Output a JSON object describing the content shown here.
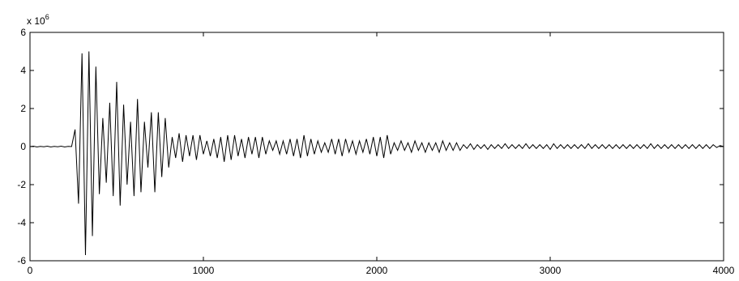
{
  "chart_data": {
    "type": "line",
    "y_scale_label": "x 10",
    "y_scale_exponent": "6",
    "color": "#000000",
    "xlim": [
      0,
      4000
    ],
    "xticks": [
      0,
      1000,
      2000,
      3000,
      4000
    ],
    "ylim": [
      -6,
      6
    ],
    "yticks": [
      -6,
      -4,
      -2,
      0,
      2,
      4,
      6
    ],
    "grid": false,
    "x": [
      0,
      20,
      40,
      60,
      80,
      100,
      120,
      140,
      160,
      180,
      200,
      220,
      240,
      260,
      280,
      300,
      320,
      340,
      360,
      380,
      400,
      420,
      440,
      460,
      480,
      500,
      520,
      540,
      560,
      580,
      600,
      620,
      640,
      660,
      680,
      700,
      720,
      740,
      760,
      780,
      800,
      820,
      840,
      860,
      880,
      900,
      920,
      940,
      960,
      980,
      1000,
      1020,
      1040,
      1060,
      1080,
      1100,
      1120,
      1140,
      1160,
      1180,
      1200,
      1220,
      1240,
      1260,
      1280,
      1300,
      1320,
      1340,
      1360,
      1380,
      1400,
      1420,
      1440,
      1460,
      1480,
      1500,
      1520,
      1540,
      1560,
      1580,
      1600,
      1620,
      1640,
      1660,
      1680,
      1700,
      1720,
      1740,
      1760,
      1780,
      1800,
      1820,
      1840,
      1860,
      1880,
      1900,
      1920,
      1940,
      1960,
      1980,
      2000,
      2020,
      2040,
      2060,
      2080,
      2100,
      2120,
      2140,
      2160,
      2180,
      2200,
      2220,
      2240,
      2260,
      2280,
      2300,
      2320,
      2340,
      2360,
      2380,
      2400,
      2420,
      2440,
      2460,
      2480,
      2500,
      2520,
      2540,
      2560,
      2580,
      2600,
      2620,
      2640,
      2660,
      2680,
      2700,
      2720,
      2740,
      2760,
      2780,
      2800,
      2820,
      2840,
      2860,
      2880,
      2900,
      2920,
      2940,
      2960,
      2980,
      3000,
      3020,
      3040,
      3060,
      3080,
      3100,
      3120,
      3140,
      3160,
      3180,
      3200,
      3220,
      3240,
      3260,
      3280,
      3300,
      3320,
      3340,
      3360,
      3380,
      3400,
      3420,
      3440,
      3460,
      3480,
      3500,
      3520,
      3540,
      3560,
      3580,
      3600,
      3620,
      3640,
      3660,
      3680,
      3700,
      3720,
      3740,
      3760,
      3780,
      3800,
      3820,
      3840,
      3860,
      3880,
      3900,
      3920,
      3940,
      3960,
      3980,
      4000
    ],
    "values": [
      0,
      0.02,
      -0.02,
      0.01,
      -0.01,
      0.02,
      -0.02,
      0.01,
      -0.01,
      0.02,
      -0.02,
      0.01,
      0,
      0.9,
      -3.0,
      4.9,
      -5.7,
      5.0,
      -4.7,
      4.2,
      -2.5,
      1.5,
      -1.9,
      2.3,
      -2.6,
      3.4,
      -3.1,
      2.2,
      -2.0,
      1.3,
      -2.6,
      2.5,
      -2.4,
      1.3,
      -1.1,
      1.8,
      -2.4,
      1.8,
      -1.6,
      1.5,
      -1.1,
      0.5,
      -0.6,
      0.7,
      -0.8,
      0.6,
      -0.5,
      0.6,
      -0.7,
      0.6,
      -0.4,
      0.3,
      -0.5,
      0.4,
      -0.6,
      0.5,
      -0.8,
      0.6,
      -0.7,
      0.6,
      -0.5,
      0.4,
      -0.6,
      0.5,
      -0.4,
      0.5,
      -0.6,
      0.5,
      -0.4,
      0.3,
      -0.2,
      0.3,
      -0.4,
      0.3,
      -0.4,
      0.4,
      -0.5,
      0.4,
      -0.6,
      0.6,
      -0.5,
      0.4,
      -0.4,
      0.3,
      -0.3,
      0.2,
      -0.3,
      0.4,
      -0.4,
      0.4,
      -0.5,
      0.4,
      -0.3,
      0.3,
      -0.4,
      0.3,
      -0.3,
      0.4,
      -0.4,
      0.5,
      -0.5,
      0.5,
      -0.6,
      0.6,
      -0.4,
      0.2,
      -0.2,
      0.3,
      -0.2,
      0.2,
      -0.3,
      0.3,
      -0.2,
      0.2,
      -0.3,
      0.2,
      -0.2,
      0.2,
      -0.3,
      0.3,
      -0.2,
      0.2,
      -0.2,
      0.2,
      -0.2,
      0.1,
      -0.1,
      0.15,
      -0.15,
      0.1,
      -0.1,
      0.1,
      -0.15,
      0.1,
      -0.1,
      0.1,
      -0.1,
      0.15,
      -0.1,
      0.1,
      -0.1,
      0.1,
      -0.1,
      0.15,
      -0.1,
      0.1,
      -0.1,
      0.1,
      -0.1,
      0.1,
      -0.15,
      0.15,
      -0.1,
      0.1,
      -0.1,
      0.1,
      -0.1,
      0.1,
      -0.1,
      0.1,
      -0.1,
      0.15,
      -0.1,
      0.1,
      -0.1,
      0.1,
      -0.1,
      0.1,
      -0.1,
      0.1,
      -0.1,
      0.1,
      -0.1,
      0.1,
      -0.1,
      0.1,
      -0.1,
      0.1,
      -0.1,
      0.15,
      -0.1,
      0.1,
      -0.1,
      0.1,
      -0.1,
      0.1,
      -0.1,
      0.1,
      -0.1,
      0.1,
      -0.1,
      0.1,
      -0.1,
      0.1,
      -0.1,
      0.1,
      -0.1,
      0.1,
      -0.05,
      0.05,
      0
    ]
  }
}
